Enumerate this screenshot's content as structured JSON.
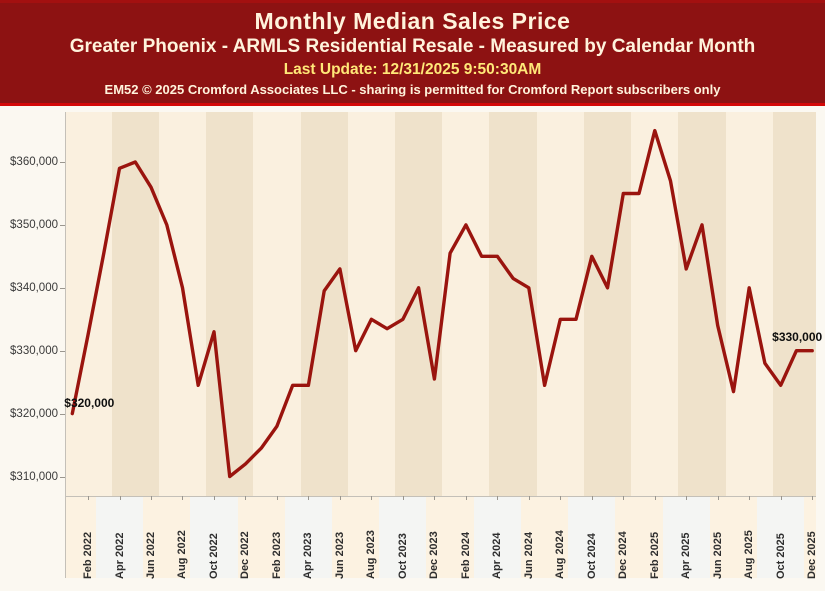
{
  "header": {
    "title": "Monthly Median Sales Price",
    "subtitle": "Greater Phoenix - ARMLS Residential Resale - Measured by Calendar Month",
    "last_update": "Last Update: 12/31/2025 9:50:30AM",
    "copyright": "EM52 © 2025 Cromford Associates LLC - sharing is permitted for Cromford Report subscribers only"
  },
  "chart_data": {
    "type": "line",
    "title": "Monthly Median Sales Price",
    "series_name": "Median Sales Price ($)",
    "x": [
      "Jan 2022",
      "Feb 2022",
      "Mar 2022",
      "Apr 2022",
      "May 2022",
      "Jun 2022",
      "Jul 2022",
      "Aug 2022",
      "Sep 2022",
      "Oct 2022",
      "Nov 2022",
      "Dec 2022",
      "Jan 2023",
      "Feb 2023",
      "Mar 2023",
      "Apr 2023",
      "May 2023",
      "Jun 2023",
      "Jul 2023",
      "Aug 2023",
      "Sep 2023",
      "Oct 2023",
      "Nov 2023",
      "Dec 2023",
      "Jan 2024",
      "Feb 2024",
      "Mar 2024",
      "Apr 2024",
      "May 2024",
      "Jun 2024",
      "Jul 2024",
      "Aug 2024",
      "Sep 2024",
      "Oct 2024",
      "Nov 2024",
      "Dec 2024",
      "Jan 2025",
      "Feb 2025",
      "Mar 2025",
      "Apr 2025",
      "May 2025",
      "Jun 2025",
      "Jul 2025",
      "Aug 2025",
      "Sep 2025",
      "Oct 2025",
      "Nov 2025",
      "Dec 2025"
    ],
    "values": [
      320000,
      332500,
      345500,
      359000,
      360000,
      356000,
      350000,
      340000,
      324500,
      333000,
      310000,
      312000,
      314500,
      318000,
      324500,
      324500,
      339500,
      343000,
      330000,
      335000,
      333500,
      335000,
      340000,
      325500,
      345500,
      350000,
      345000,
      345000,
      341500,
      340000,
      324500,
      335000,
      335000,
      345000,
      340000,
      355000,
      355000,
      365000,
      357000,
      343000,
      350000,
      334000,
      323500,
      340000,
      328000,
      324500,
      330000,
      330000
    ],
    "x_tick_labels": [
      "Feb 2022",
      "Apr 2022",
      "Jun 2022",
      "Aug 2022",
      "Oct 2022",
      "Dec 2022",
      "Feb 2023",
      "Apr 2023",
      "Jun 2023",
      "Aug 2023",
      "Oct 2023",
      "Dec 2023",
      "Feb 2024",
      "Apr 2024",
      "Jun 2024",
      "Aug 2024",
      "Oct 2024",
      "Dec 2024",
      "Feb 2025",
      "Apr 2025",
      "Jun 2025",
      "Aug 2025",
      "Oct 2025",
      "Dec 2025"
    ],
    "y_ticks": [
      {
        "label": "$360,000",
        "value": 360000
      },
      {
        "label": "$350,000",
        "value": 350000
      },
      {
        "label": "$340,000",
        "value": 340000
      },
      {
        "label": "$330,000",
        "value": 330000
      },
      {
        "label": "$320,000",
        "value": 320000
      },
      {
        "label": "$310,000",
        "value": 310000
      }
    ],
    "ylim": [
      305000,
      367000
    ],
    "grid": "off",
    "legend": "none",
    "annotations": [
      {
        "text": "$320,000",
        "point_index": 0,
        "position": "above-right"
      },
      {
        "text": "$330,000",
        "point_index": 47,
        "position": "above-left"
      }
    ],
    "colors": {
      "line": "#9a140e",
      "header_bg": "#8d1212",
      "header_text": "#fff3dc",
      "header_update_text": "#ffe878",
      "header_divider": "#d40808",
      "plot_band_light": "#faf0df",
      "plot_band_dark": "#efe2cb",
      "strip_band_peach": "#fcf2e1",
      "strip_band_white": "#f4f5f3",
      "canvas_bg": "#fbf8f1"
    }
  }
}
